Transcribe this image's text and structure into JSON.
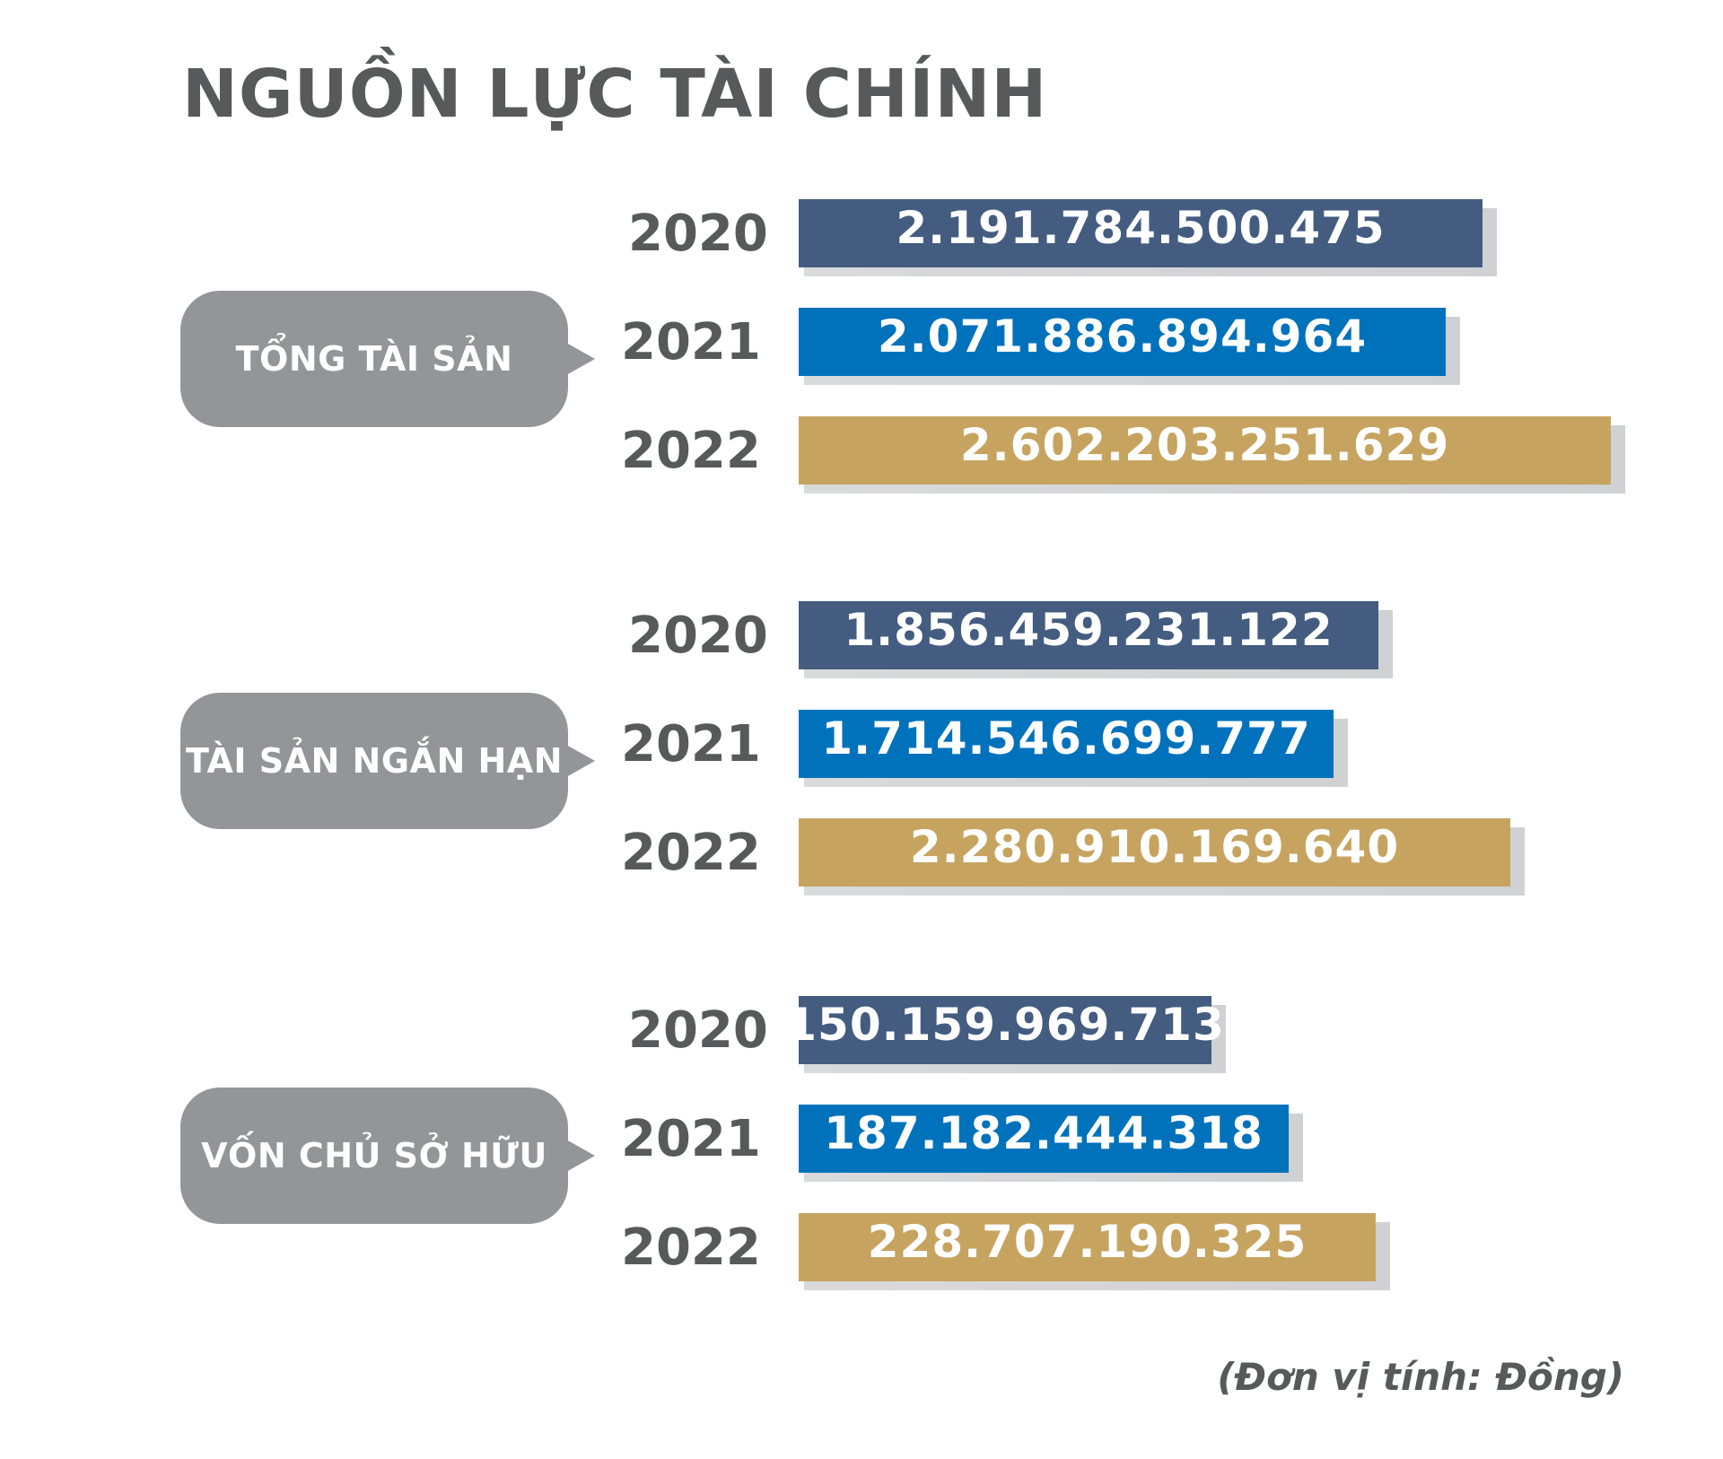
{
  "title": "NGUỒN LỰC TÀI CHÍNH",
  "unit_note": "(Đơn vị tính: Đồng)",
  "colors": {
    "2020": "#435c80",
    "2021": "#0072bc",
    "2022": "#c6a460",
    "bubble": "#939598",
    "text": "#58595b"
  },
  "chart_data": {
    "type": "bar",
    "orientation": "horizontal",
    "title": "NGUỒN LỰC TÀI CHÍNH",
    "unit": "Đồng",
    "groups": [
      {
        "label": "TỔNG TÀI SẢN",
        "rows": [
          {
            "year": "2020",
            "value": 2191784500475,
            "value_label": "2.191.784.500.475"
          },
          {
            "year": "2021",
            "value": 2071886894964,
            "value_label": "2.071.886.894.964"
          },
          {
            "year": "2022",
            "value": 2602203251629,
            "value_label": "2.602.203.251.629"
          }
        ]
      },
      {
        "label": "TÀI SẢN NGẮN HẠN",
        "rows": [
          {
            "year": "2020",
            "value": 1856459231122,
            "value_label": "1.856.459.231.122"
          },
          {
            "year": "2021",
            "value": 1714546699777,
            "value_label": "1.714.546.699.777"
          },
          {
            "year": "2022",
            "value": 2280910169640,
            "value_label": "2.280.910.169.640"
          }
        ]
      },
      {
        "label": "VỐN CHỦ SỞ HỮU",
        "rows": [
          {
            "year": "2020",
            "value": 150159969713,
            "value_label": "150.159.969.713"
          },
          {
            "year": "2021",
            "value": 187182444318,
            "value_label": "187.182.444.318"
          },
          {
            "year": "2022",
            "value": 228707190325,
            "value_label": "228.707.190.325"
          }
        ]
      }
    ]
  }
}
